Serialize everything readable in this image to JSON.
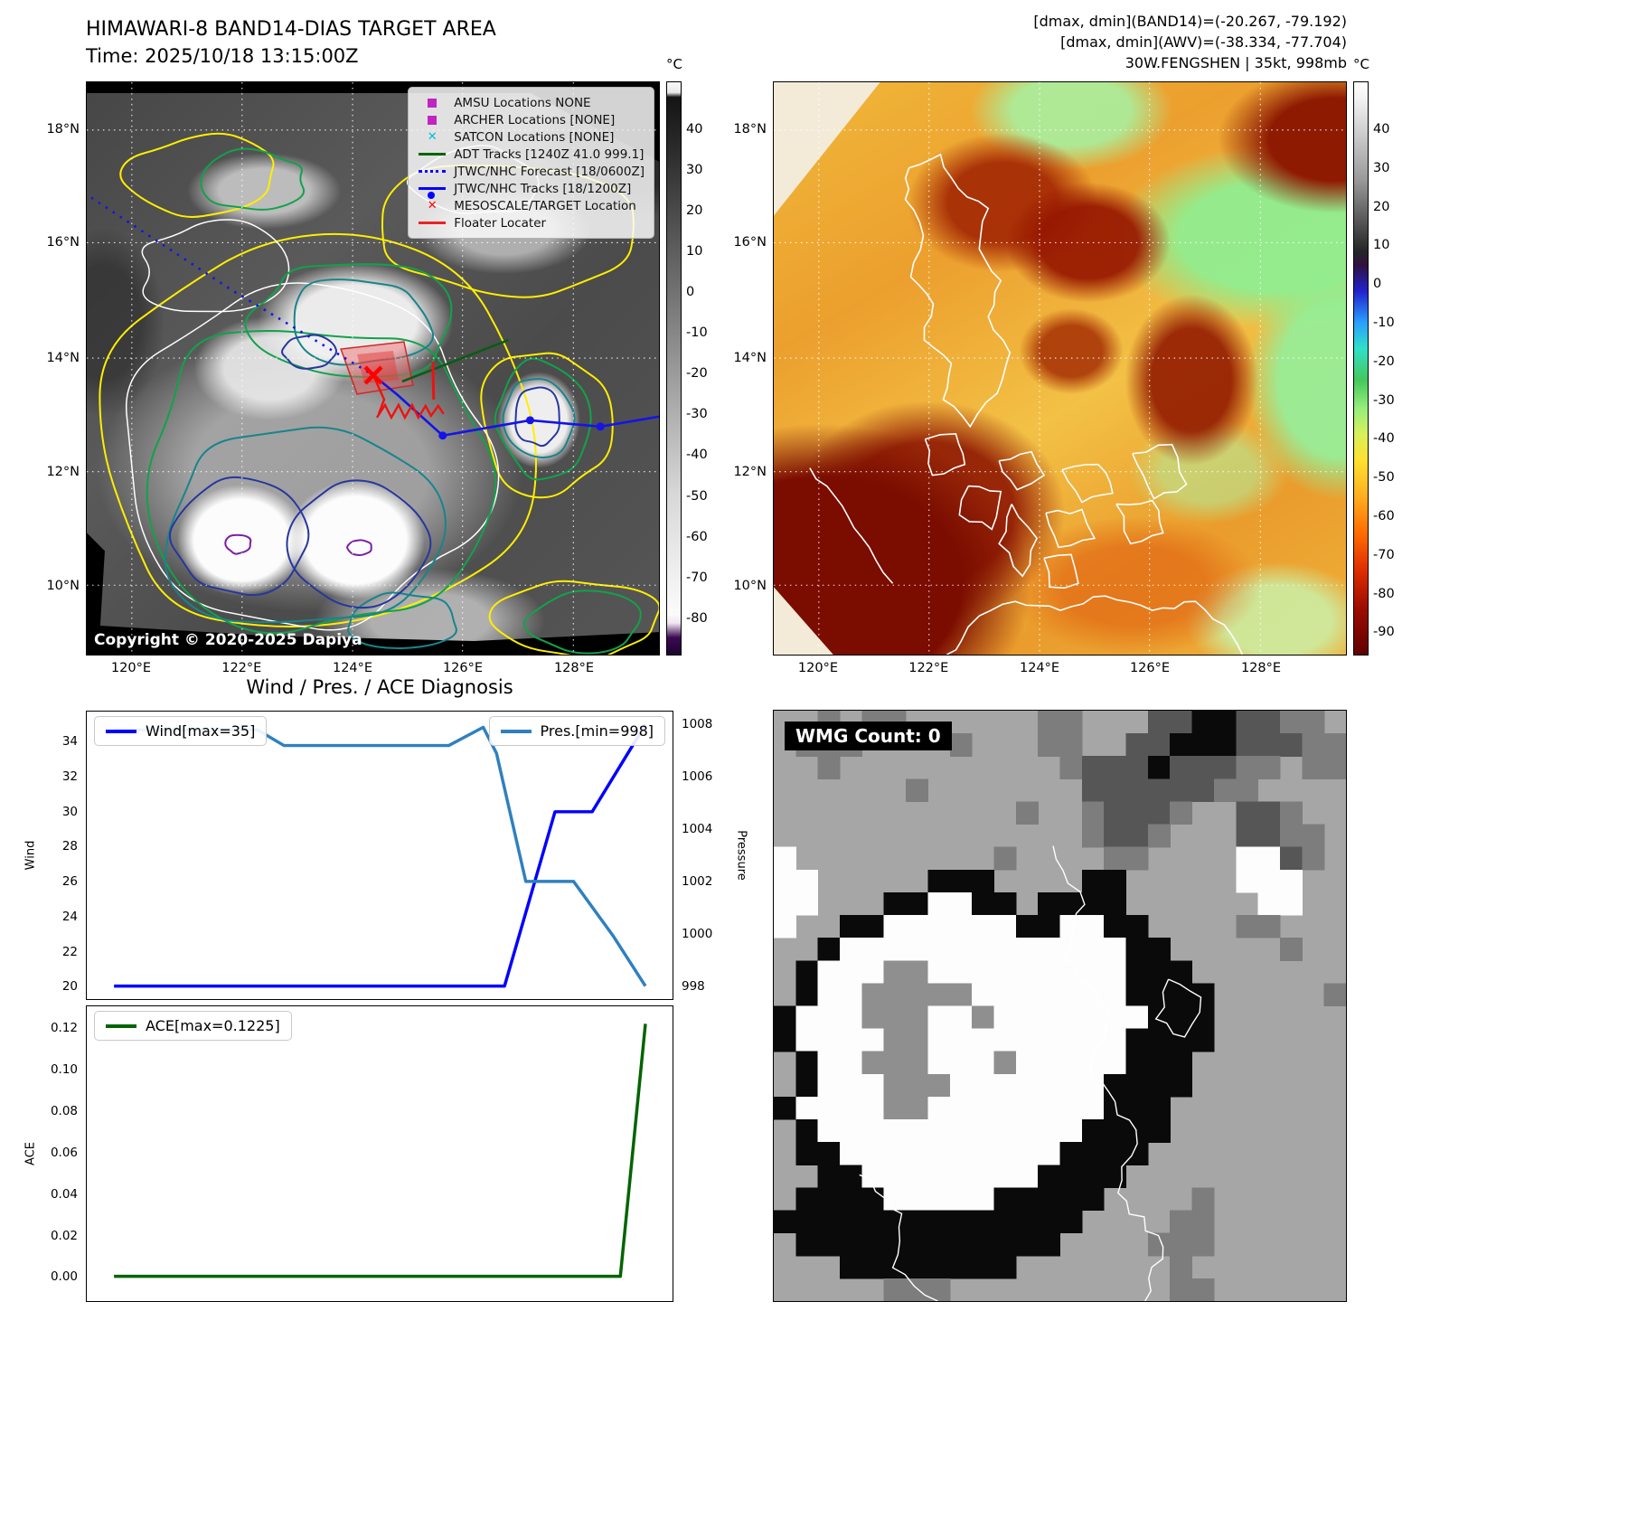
{
  "band14": {
    "title": "HIMAWARI-8 BAND14-DIAS TARGET AREA",
    "time_label": "Time: 2025/10/18 13:15:00Z",
    "copyright": "Copyright © 2020-2025 Dapiya",
    "legend": [
      {
        "label": "AMSU Locations NONE",
        "marker": "square",
        "color": "#c224c2"
      },
      {
        "label": "ARCHER Locations [NONE]",
        "marker": "square",
        "color": "#c224c2"
      },
      {
        "label": "SATCON Locations [NONE]",
        "marker": "x",
        "color": "#00bcd4"
      },
      {
        "label": "ADT Tracks [1240Z 41.0 999.1]",
        "marker": "line",
        "color": "#006400"
      },
      {
        "label": "JTWC/NHC Forecast [18/0600Z]",
        "marker": "dotted",
        "color": "#0000ff"
      },
      {
        "label": "JTWC/NHC Tracks [18/1200Z]",
        "marker": "line-dot",
        "color": "#0000ff"
      },
      {
        "label": "MESOSCALE/TARGET Location",
        "marker": "x",
        "color": "#ff0000"
      },
      {
        "label": "Floater Locater",
        "marker": "line",
        "color": "#ee2222"
      }
    ],
    "colorbar": {
      "unit": "°C",
      "ticks": [
        "40",
        "30",
        "20",
        "10",
        "0",
        "-10",
        "-20",
        "-30",
        "-40",
        "-50",
        "-60",
        "-70",
        "-80"
      ]
    },
    "lat_ticks": [
      "18°N",
      "16°N",
      "14°N",
      "12°N",
      "10°N"
    ],
    "lon_ticks": [
      "120°E",
      "122°E",
      "124°E",
      "126°E",
      "128°E"
    ]
  },
  "awv": {
    "info_lines": [
      "[dmax, dmin](BAND14)=(-20.267, -79.192)",
      "[dmax, dmin](AWV)=(-38.334, -77.704)",
      "30W.FENGSHEN | 35kt, 998mb"
    ],
    "colorbar": {
      "unit": "°C",
      "ticks": [
        "40",
        "30",
        "20",
        "10",
        "0",
        "-10",
        "-20",
        "-30",
        "-40",
        "-50",
        "-60",
        "-70",
        "-80",
        "-90"
      ]
    },
    "lat_ticks": [
      "18°N",
      "16°N",
      "14°N",
      "12°N",
      "10°N"
    ],
    "lon_ticks": [
      "120°E",
      "122°E",
      "124°E",
      "126°E",
      "128°E"
    ]
  },
  "diagnosis": {
    "title": "Wind / Pres. / ACE Diagnosis"
  },
  "wmg": {
    "count_label": "WMG Count: 0"
  },
  "chart_data": [
    {
      "type": "line",
      "title": "Wind / Pres. / ACE Diagnosis",
      "x_range": [
        0,
        1
      ],
      "x_margin": 0.045,
      "x_ticks": [],
      "left_axis": {
        "label": "Wind",
        "ticks": [
          20,
          22,
          24,
          26,
          28,
          30,
          32,
          34
        ],
        "range": [
          19.25,
          35.75
        ]
      },
      "right_axis": {
        "label": "Pressure",
        "ticks": [
          998,
          1000,
          1002,
          1004,
          1006,
          1008
        ],
        "range": [
          997.5,
          1008.5
        ]
      },
      "series": [
        {
          "name": "Wind[max=35]",
          "axis": "left",
          "color": "#0000ff",
          "width": 3.5,
          "points": [
            [
              0,
              20
            ],
            [
              0.735,
              20
            ],
            [
              0.83,
              30
            ],
            [
              0.9,
              30
            ],
            [
              1,
              35
            ]
          ]
        },
        {
          "name": "Pres.[min=998]",
          "axis": "right",
          "color": "#2f80c0",
          "width": 3.5,
          "points": [
            [
              0,
              1007.8
            ],
            [
              0.27,
              1007.8
            ],
            [
              0.32,
              1007.2
            ],
            [
              0.63,
              1007.2
            ],
            [
              0.695,
              1007.9
            ],
            [
              0.72,
              1006.9
            ],
            [
              0.775,
              1002.0
            ],
            [
              0.865,
              1002.0
            ],
            [
              0.94,
              999.9
            ],
            [
              1,
              998.0
            ]
          ]
        }
      ],
      "legends": [
        {
          "label": "Wind[max=35]",
          "color": "#0000ff",
          "position": "top-left"
        },
        {
          "label": "Pres.[min=998]",
          "color": "#2f80c0",
          "position": "top-right"
        }
      ],
      "grid": false
    },
    {
      "type": "line",
      "x_range": [
        0,
        1
      ],
      "x_margin": 0.045,
      "x_ticks": [],
      "left_axis": {
        "label": "ACE",
        "ticks": [
          "0.00",
          "0.02",
          "0.04",
          "0.06",
          "0.08",
          "0.10",
          "0.12"
        ],
        "range": [
          -0.012,
          0.131
        ]
      },
      "series": [
        {
          "name": "ACE[max=0.1225]",
          "axis": "left",
          "color": "#006400",
          "width": 3.5,
          "points": [
            [
              0,
              0
            ],
            [
              0.953,
              0
            ],
            [
              1,
              0.1225
            ]
          ]
        }
      ],
      "legends": [
        {
          "label": "ACE[max=0.1225]",
          "color": "#006400",
          "position": "top-left"
        }
      ],
      "grid": false
    }
  ]
}
